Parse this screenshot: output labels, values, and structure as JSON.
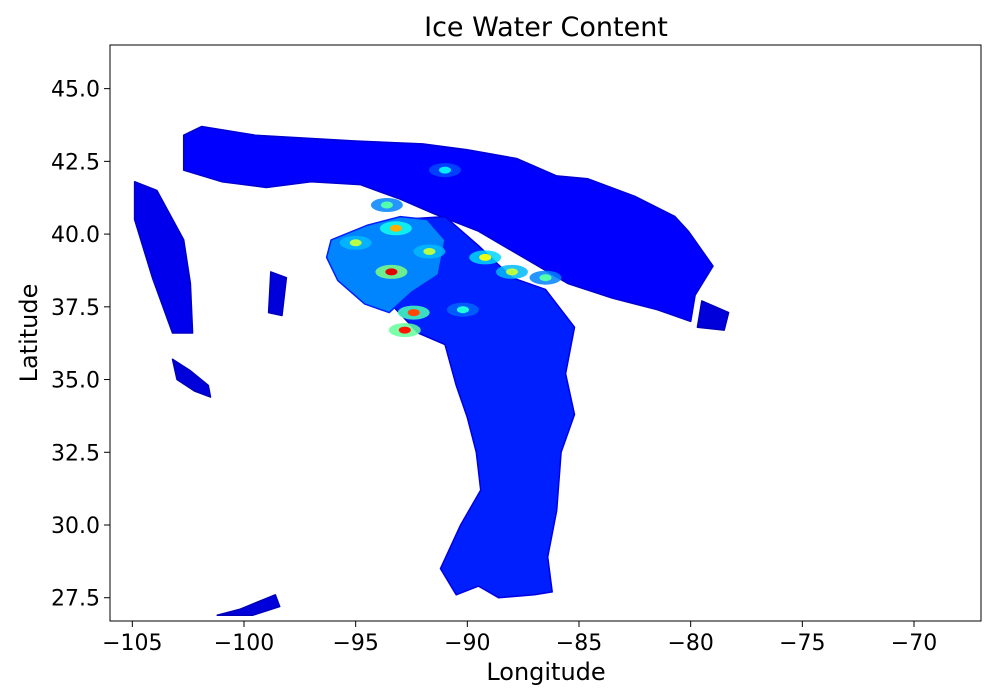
{
  "chart_data": {
    "type": "heatmap",
    "title": "Ice Water Content",
    "xlabel": "Longitude",
    "ylabel": "Latitude",
    "xlim": [
      -106,
      -67
    ],
    "ylim": [
      26.7,
      46.5
    ],
    "grid": false,
    "legend": "none",
    "x_ticks": [
      {
        "value": -105,
        "label": "−105"
      },
      {
        "value": -100,
        "label": "−100"
      },
      {
        "value": -95,
        "label": "−95"
      },
      {
        "value": -90,
        "label": "−90"
      },
      {
        "value": -85,
        "label": "−85"
      },
      {
        "value": -80,
        "label": "−80"
      },
      {
        "value": -75,
        "label": "−75"
      },
      {
        "value": -70,
        "label": "−70"
      }
    ],
    "y_ticks": [
      {
        "value": 27.5,
        "label": "27.5"
      },
      {
        "value": 30.0,
        "label": "30.0"
      },
      {
        "value": 32.5,
        "label": "32.5"
      },
      {
        "value": 35.0,
        "label": "35.0"
      },
      {
        "value": 37.5,
        "label": "37.5"
      },
      {
        "value": 40.0,
        "label": "40.0"
      },
      {
        "value": 42.5,
        "label": "42.5"
      },
      {
        "value": 45.0,
        "label": "45.0"
      }
    ],
    "colormap": "jet",
    "colors": {
      "low": "#00008f",
      "mid_low": "#0040ff",
      "mid": "#00ffff",
      "mid_high": "#ffff00",
      "high": "#800000"
    },
    "regions": [
      {
        "name": "northern-band",
        "intensity": 0.12,
        "outline": [
          [
            -102.7,
            43.4
          ],
          [
            -101.9,
            43.7
          ],
          [
            -99.5,
            43.4
          ],
          [
            -95,
            43.2
          ],
          [
            -92,
            43.1
          ],
          [
            -90,
            42.9
          ],
          [
            -87.8,
            42.6
          ],
          [
            -86,
            42
          ],
          [
            -84.6,
            41.9
          ],
          [
            -82.5,
            41.3
          ],
          [
            -80.7,
            40.6
          ],
          [
            -80.1,
            40.1
          ],
          [
            -79,
            38.9
          ],
          [
            -79.8,
            37.9
          ],
          [
            -80,
            37.0
          ],
          [
            -81.5,
            37.4
          ],
          [
            -83.5,
            37.8
          ],
          [
            -85.5,
            38.3
          ],
          [
            -87.5,
            39.2
          ],
          [
            -89.5,
            40.1
          ],
          [
            -91.5,
            40.7
          ],
          [
            -93,
            41.2
          ],
          [
            -94.8,
            41.7
          ],
          [
            -97,
            41.8
          ],
          [
            -99,
            41.6
          ],
          [
            -101,
            41.8
          ],
          [
            -102.7,
            42.2
          ]
        ]
      },
      {
        "name": "southern-trunk",
        "intensity": 0.15,
        "outline": [
          [
            -93,
            40.5
          ],
          [
            -91,
            40.6
          ],
          [
            -89.5,
            39.6
          ],
          [
            -88,
            38.5
          ],
          [
            -86.5,
            38.1
          ],
          [
            -85.2,
            36.8
          ],
          [
            -85.6,
            35.2
          ],
          [
            -85.2,
            33.8
          ],
          [
            -85.8,
            32.5
          ],
          [
            -86,
            30.5
          ],
          [
            -86.4,
            28.9
          ],
          [
            -86.2,
            27.7
          ],
          [
            -87,
            27.6
          ],
          [
            -88.6,
            27.5
          ],
          [
            -89.5,
            27.9
          ],
          [
            -90.5,
            27.6
          ],
          [
            -91.2,
            28.5
          ],
          [
            -90.3,
            30
          ],
          [
            -89.4,
            31.2
          ],
          [
            -89.6,
            32.5
          ],
          [
            -90,
            33.7
          ],
          [
            -90.5,
            34.8
          ],
          [
            -91,
            36.2
          ],
          [
            -92.2,
            36.6
          ],
          [
            -93.3,
            37.5
          ],
          [
            -93.8,
            38.4
          ]
        ]
      },
      {
        "name": "central-cluster",
        "intensity": 0.25,
        "outline": [
          [
            -96.1,
            39.8
          ],
          [
            -94.5,
            40.3
          ],
          [
            -93,
            40.6
          ],
          [
            -91.8,
            40.5
          ],
          [
            -91,
            39.8
          ],
          [
            -91.3,
            38.6
          ],
          [
            -92.5,
            38
          ],
          [
            -93.5,
            37.3
          ],
          [
            -94.6,
            37.6
          ],
          [
            -95.8,
            38.4
          ],
          [
            -96.3,
            39.2
          ]
        ]
      },
      {
        "name": "west-strip",
        "intensity": 0.1,
        "outline": [
          [
            -104.9,
            41.8
          ],
          [
            -103.9,
            41.5
          ],
          [
            -102.7,
            39.8
          ],
          [
            -102.4,
            38.3
          ],
          [
            -102.3,
            36.6
          ],
          [
            -103.2,
            36.6
          ],
          [
            -104.1,
            38.5
          ],
          [
            -104.9,
            40.5
          ]
        ]
      },
      {
        "name": "mid-west-patch",
        "intensity": 0.08,
        "outline": [
          [
            -98.8,
            38.7
          ],
          [
            -98.1,
            38.5
          ],
          [
            -98.3,
            37.2
          ],
          [
            -98.9,
            37.3
          ]
        ]
      },
      {
        "name": "southwest-patch",
        "intensity": 0.08,
        "outline": [
          [
            -103.2,
            35.7
          ],
          [
            -102.4,
            35.3
          ],
          [
            -101.6,
            34.8
          ],
          [
            -101.5,
            34.4
          ],
          [
            -102.2,
            34.6
          ],
          [
            -103.0,
            35.0
          ]
        ]
      },
      {
        "name": "south-tail",
        "intensity": 0.08,
        "outline": [
          [
            -101.2,
            26.9
          ],
          [
            -100.2,
            27.1
          ],
          [
            -98.6,
            27.6
          ],
          [
            -98.4,
            27.2
          ],
          [
            -99.6,
            26.9
          ]
        ]
      },
      {
        "name": "east-edge",
        "intensity": 0.08,
        "outline": [
          [
            -79.5,
            37.7
          ],
          [
            -78.3,
            37.3
          ],
          [
            -78.5,
            36.7
          ],
          [
            -79.7,
            36.8
          ]
        ]
      }
    ],
    "hotspots": [
      {
        "x": -95.0,
        "y": 39.7,
        "value": 0.55
      },
      {
        "x": -93.4,
        "y": 38.7,
        "value": 0.9
      },
      {
        "x": -92.8,
        "y": 36.7,
        "value": 0.85
      },
      {
        "x": -92.4,
        "y": 37.3,
        "value": 0.8
      },
      {
        "x": -93.2,
        "y": 40.2,
        "value": 0.7
      },
      {
        "x": -91.7,
        "y": 39.4,
        "value": 0.55
      },
      {
        "x": -89.2,
        "y": 39.2,
        "value": 0.6
      },
      {
        "x": -88.0,
        "y": 38.7,
        "value": 0.55
      },
      {
        "x": -86.5,
        "y": 38.5,
        "value": 0.45
      },
      {
        "x": -90.2,
        "y": 37.4,
        "value": 0.4
      },
      {
        "x": -93.6,
        "y": 41.0,
        "value": 0.45
      },
      {
        "x": -91.0,
        "y": 42.2,
        "value": 0.35
      }
    ]
  }
}
